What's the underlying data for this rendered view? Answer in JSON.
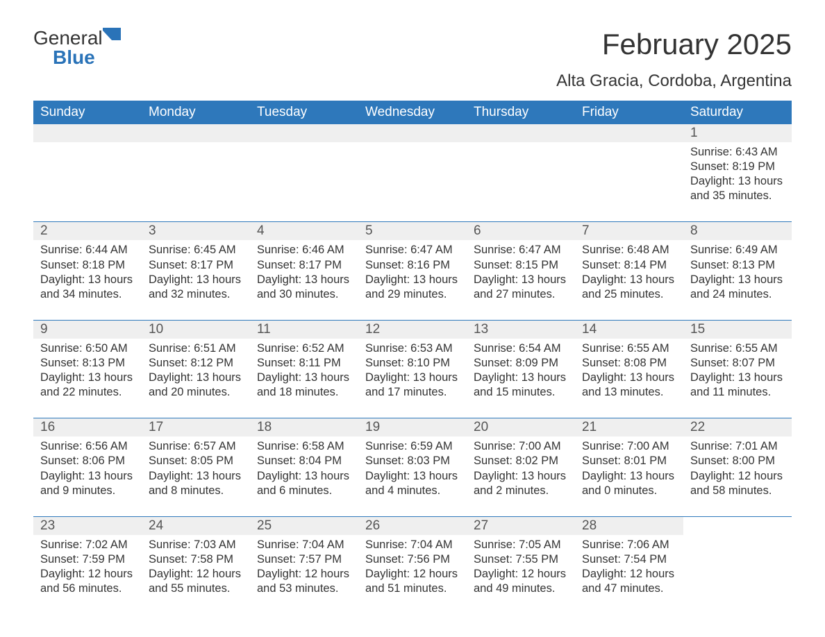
{
  "logo": {
    "word1": "General",
    "word2": "Blue"
  },
  "title": "February 2025",
  "subtitle": "Alta Gracia, Cordoba, Argentina",
  "colors": {
    "header_bg": "#2e78bb",
    "header_text": "#ffffff",
    "daynum_bg": "#efefef",
    "border": "#2e78bb",
    "logo_blue": "#2a73b8",
    "body_text": "#333333",
    "page_bg": "#ffffff"
  },
  "typography": {
    "title_fontsize": 42,
    "subtitle_fontsize": 24,
    "header_fontsize": 19,
    "daynum_fontsize": 19,
    "body_fontsize": 16.5
  },
  "day_headers": [
    "Sunday",
    "Monday",
    "Tuesday",
    "Wednesday",
    "Thursday",
    "Friday",
    "Saturday"
  ],
  "leading_blanks": 6,
  "days": [
    {
      "n": "1",
      "sunrise": "6:43 AM",
      "sunset": "8:19 PM",
      "dl_h": "13",
      "dl_m": "35"
    },
    {
      "n": "2",
      "sunrise": "6:44 AM",
      "sunset": "8:18 PM",
      "dl_h": "13",
      "dl_m": "34"
    },
    {
      "n": "3",
      "sunrise": "6:45 AM",
      "sunset": "8:17 PM",
      "dl_h": "13",
      "dl_m": "32"
    },
    {
      "n": "4",
      "sunrise": "6:46 AM",
      "sunset": "8:17 PM",
      "dl_h": "13",
      "dl_m": "30"
    },
    {
      "n": "5",
      "sunrise": "6:47 AM",
      "sunset": "8:16 PM",
      "dl_h": "13",
      "dl_m": "29"
    },
    {
      "n": "6",
      "sunrise": "6:47 AM",
      "sunset": "8:15 PM",
      "dl_h": "13",
      "dl_m": "27"
    },
    {
      "n": "7",
      "sunrise": "6:48 AM",
      "sunset": "8:14 PM",
      "dl_h": "13",
      "dl_m": "25"
    },
    {
      "n": "8",
      "sunrise": "6:49 AM",
      "sunset": "8:13 PM",
      "dl_h": "13",
      "dl_m": "24"
    },
    {
      "n": "9",
      "sunrise": "6:50 AM",
      "sunset": "8:13 PM",
      "dl_h": "13",
      "dl_m": "22"
    },
    {
      "n": "10",
      "sunrise": "6:51 AM",
      "sunset": "8:12 PM",
      "dl_h": "13",
      "dl_m": "20"
    },
    {
      "n": "11",
      "sunrise": "6:52 AM",
      "sunset": "8:11 PM",
      "dl_h": "13",
      "dl_m": "18"
    },
    {
      "n": "12",
      "sunrise": "6:53 AM",
      "sunset": "8:10 PM",
      "dl_h": "13",
      "dl_m": "17"
    },
    {
      "n": "13",
      "sunrise": "6:54 AM",
      "sunset": "8:09 PM",
      "dl_h": "13",
      "dl_m": "15"
    },
    {
      "n": "14",
      "sunrise": "6:55 AM",
      "sunset": "8:08 PM",
      "dl_h": "13",
      "dl_m": "13"
    },
    {
      "n": "15",
      "sunrise": "6:55 AM",
      "sunset": "8:07 PM",
      "dl_h": "13",
      "dl_m": "11"
    },
    {
      "n": "16",
      "sunrise": "6:56 AM",
      "sunset": "8:06 PM",
      "dl_h": "13",
      "dl_m": "9"
    },
    {
      "n": "17",
      "sunrise": "6:57 AM",
      "sunset": "8:05 PM",
      "dl_h": "13",
      "dl_m": "8"
    },
    {
      "n": "18",
      "sunrise": "6:58 AM",
      "sunset": "8:04 PM",
      "dl_h": "13",
      "dl_m": "6"
    },
    {
      "n": "19",
      "sunrise": "6:59 AM",
      "sunset": "8:03 PM",
      "dl_h": "13",
      "dl_m": "4"
    },
    {
      "n": "20",
      "sunrise": "7:00 AM",
      "sunset": "8:02 PM",
      "dl_h": "13",
      "dl_m": "2"
    },
    {
      "n": "21",
      "sunrise": "7:00 AM",
      "sunset": "8:01 PM",
      "dl_h": "13",
      "dl_m": "0"
    },
    {
      "n": "22",
      "sunrise": "7:01 AM",
      "sunset": "8:00 PM",
      "dl_h": "12",
      "dl_m": "58"
    },
    {
      "n": "23",
      "sunrise": "7:02 AM",
      "sunset": "7:59 PM",
      "dl_h": "12",
      "dl_m": "56"
    },
    {
      "n": "24",
      "sunrise": "7:03 AM",
      "sunset": "7:58 PM",
      "dl_h": "12",
      "dl_m": "55"
    },
    {
      "n": "25",
      "sunrise": "7:04 AM",
      "sunset": "7:57 PM",
      "dl_h": "12",
      "dl_m": "53"
    },
    {
      "n": "26",
      "sunrise": "7:04 AM",
      "sunset": "7:56 PM",
      "dl_h": "12",
      "dl_m": "51"
    },
    {
      "n": "27",
      "sunrise": "7:05 AM",
      "sunset": "7:55 PM",
      "dl_h": "12",
      "dl_m": "49"
    },
    {
      "n": "28",
      "sunrise": "7:06 AM",
      "sunset": "7:54 PM",
      "dl_h": "12",
      "dl_m": "47"
    }
  ],
  "labels": {
    "sunrise_prefix": "Sunrise: ",
    "sunset_prefix": "Sunset: ",
    "daylight_prefix": "Daylight: ",
    "hours_word": " hours",
    "and_word": "and ",
    "minutes_suffix": " minutes."
  }
}
